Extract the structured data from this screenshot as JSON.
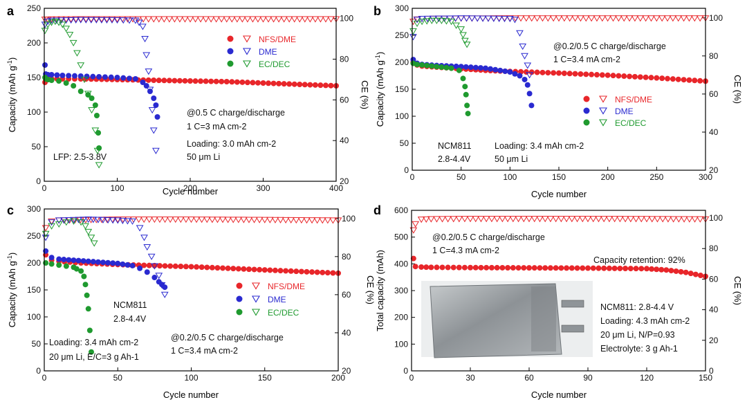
{
  "colors": {
    "nfs": "#e8262a",
    "dme": "#2a2ad0",
    "ec": "#1f9a2f",
    "axis": "#000000",
    "text": "#111111",
    "pouch": "#9ea3a6"
  },
  "chart_data": [
    {
      "panel": "a",
      "type": "scatter",
      "xlabel": "Cycle number",
      "ylabel": "Capacity (mAh g-1)",
      "ylabel_base": "Capacity (mAh g",
      "ylabel_sup": "-1",
      "ylabel_end": ")",
      "y2label": "CE (%)",
      "xlim": [
        0,
        400
      ],
      "ylim": [
        0,
        250
      ],
      "y2lim": [
        20,
        105
      ],
      "xticks": [
        0,
        100,
        200,
        300,
        400
      ],
      "yticks": [
        0,
        50,
        100,
        150,
        200,
        250
      ],
      "y2ticks": [
        20,
        40,
        60,
        80,
        100
      ],
      "legend": [
        {
          "label": "NFS/DME",
          "series": "nfs"
        },
        {
          "label": "DME",
          "series": "dme"
        },
        {
          "label": "EC/DEC",
          "series": "ec"
        }
      ],
      "annotations": [
        {
          "lines": [
            "@0.5 C charge/discharge",
            "1 C=3 mA cm-2"
          ]
        },
        {
          "lines": [
            "Loading: 3.0 mAh cm-2",
            "50 μm Li"
          ]
        },
        {
          "lines": [
            "LFP: 2.5-3.8V"
          ]
        }
      ],
      "series": [
        {
          "name": "NFS/DME",
          "key": "nfs",
          "axis": "capacity",
          "x": [
            1,
            2,
            5,
            10,
            25,
            50,
            100,
            150,
            200,
            250,
            300,
            350,
            400
          ],
          "y": [
            143,
            146,
            147,
            148,
            148,
            148,
            147,
            146,
            145,
            144,
            142,
            140,
            138
          ]
        },
        {
          "name": "NFS/DME",
          "key": "nfs",
          "axis": "ce",
          "x": [
            1,
            5,
            10,
            50,
            100,
            150,
            200,
            250,
            300,
            350,
            400
          ],
          "y": [
            99.5,
            99.5,
            99.6,
            99.7,
            99.7,
            99.7,
            99.7,
            99.7,
            99.7,
            99.7,
            99.7
          ]
        },
        {
          "name": "DME",
          "key": "dme",
          "axis": "capacity",
          "x": [
            1,
            2,
            5,
            10,
            25,
            50,
            75,
            100,
            125,
            135,
            140,
            145,
            150,
            153,
            155
          ],
          "y": [
            168,
            155,
            154,
            154,
            153,
            152,
            151,
            150,
            148,
            143,
            138,
            130,
            120,
            110,
            93
          ]
        },
        {
          "name": "DME",
          "key": "dme",
          "axis": "ce",
          "x": [
            1,
            5,
            10,
            50,
            100,
            125,
            130,
            135,
            138,
            140,
            143,
            145,
            148,
            150,
            153
          ],
          "y": [
            97,
            98.5,
            99,
            99.3,
            99.2,
            99,
            98,
            96,
            90,
            82,
            74,
            65,
            55,
            45,
            35
          ]
        },
        {
          "name": "EC/DEC",
          "key": "ec",
          "axis": "capacity",
          "x": [
            1,
            2,
            5,
            10,
            20,
            30,
            40,
            50,
            60,
            65,
            70,
            72,
            74,
            75
          ],
          "y": [
            150,
            148,
            147,
            146,
            145,
            142,
            138,
            130,
            125,
            120,
            110,
            95,
            70,
            48
          ]
        },
        {
          "name": "EC/DEC",
          "key": "ec",
          "axis": "ce",
          "x": [
            1,
            5,
            10,
            15,
            20,
            25,
            30,
            35,
            40,
            45,
            50,
            55,
            60,
            65,
            70,
            73,
            75
          ],
          "y": [
            94,
            97,
            98,
            98.5,
            98,
            97,
            95,
            92,
            88,
            83,
            77,
            70,
            63,
            55,
            45,
            35,
            28
          ]
        }
      ]
    },
    {
      "panel": "b",
      "type": "scatter",
      "xlabel": "Cycle number",
      "ylabel": "Capacity (mAh g-1)",
      "ylabel_base": "Capacity (mAh g",
      "ylabel_sup": "-1",
      "ylabel_end": ")",
      "y2label": "CE (%)",
      "xlim": [
        0,
        300
      ],
      "ylim": [
        0,
        300
      ],
      "y2lim": [
        20,
        105
      ],
      "xticks": [
        0,
        50,
        100,
        150,
        200,
        250,
        300
      ],
      "yticks": [
        0,
        50,
        100,
        150,
        200,
        250,
        300
      ],
      "y2ticks": [
        20,
        40,
        60,
        80,
        100
      ],
      "legend": [
        {
          "label": "NFS/DME",
          "series": "nfs"
        },
        {
          "label": "DME",
          "series": "dme"
        },
        {
          "label": "EC/DEC",
          "series": "ec"
        }
      ],
      "annotations": [
        {
          "lines": [
            "@0.2/0.5 C charge/discharge",
            "1 C=3.4 mA cm-2"
          ]
        },
        {
          "lines": [
            "NCM811",
            "2.8-4.4V"
          ]
        },
        {
          "lines": [
            "Loading: 3.4 mAh cm-2",
            "50 μm Li"
          ]
        }
      ],
      "series": [
        {
          "name": "NFS/DME",
          "key": "nfs",
          "axis": "capacity",
          "x": [
            1,
            5,
            10,
            25,
            50,
            75,
            100,
            150,
            200,
            250,
            300
          ],
          "y": [
            200,
            195,
            193,
            191,
            188,
            185,
            183,
            180,
            176,
            171,
            165
          ]
        },
        {
          "name": "NFS/DME",
          "key": "nfs",
          "axis": "ce",
          "x": [
            1,
            5,
            10,
            50,
            100,
            150,
            200,
            250,
            300
          ],
          "y": [
            98,
            99.2,
            99.5,
            99.7,
            99.8,
            99.8,
            99.8,
            99.8,
            99.8
          ]
        },
        {
          "name": "DME",
          "key": "dme",
          "axis": "capacity",
          "x": [
            1,
            5,
            10,
            25,
            50,
            75,
            100,
            110,
            115,
            118,
            120,
            122
          ],
          "y": [
            205,
            198,
            196,
            194,
            192,
            189,
            182,
            175,
            168,
            158,
            142,
            120
          ]
        },
        {
          "name": "DME",
          "key": "dme",
          "axis": "ce",
          "x": [
            1,
            5,
            10,
            50,
            100,
            105,
            110,
            113,
            115,
            118,
            120
          ],
          "y": [
            90,
            99,
            99.5,
            99.8,
            99.5,
            99,
            92,
            85,
            80,
            75,
            70
          ]
        },
        {
          "name": "EC/DEC",
          "key": "ec",
          "axis": "capacity",
          "x": [
            1,
            5,
            10,
            20,
            30,
            40,
            48,
            52,
            54,
            55,
            56,
            57
          ],
          "y": [
            198,
            196,
            195,
            193,
            191,
            189,
            185,
            170,
            155,
            140,
            120,
            105
          ]
        },
        {
          "name": "EC/DEC",
          "key": "ec",
          "axis": "ce",
          "x": [
            1,
            5,
            10,
            20,
            30,
            40,
            45,
            50,
            52,
            54,
            56
          ],
          "y": [
            93,
            97,
            98,
            98.5,
            98.5,
            98,
            96,
            94,
            91,
            88,
            86
          ]
        }
      ]
    },
    {
      "panel": "c",
      "type": "scatter",
      "xlabel": "Cycle number",
      "ylabel": "Capacity (mAh g-1)",
      "ylabel_base": "Capacity (mAh g",
      "ylabel_sup": "-1",
      "ylabel_end": ")",
      "y2label": "CE (%)",
      "xlim": [
        0,
        200
      ],
      "ylim": [
        0,
        300
      ],
      "y2lim": [
        20,
        105
      ],
      "xticks": [
        0,
        50,
        100,
        150,
        200
      ],
      "yticks": [
        0,
        50,
        100,
        150,
        200,
        250,
        300
      ],
      "y2ticks": [
        20,
        40,
        60,
        80,
        100
      ],
      "legend": [
        {
          "label": "NFS/DME",
          "series": "nfs"
        },
        {
          "label": "DME",
          "series": "dme"
        },
        {
          "label": "EC/DEC",
          "series": "ec"
        }
      ],
      "annotations": [
        {
          "lines": [
            "NCM811",
            "2.8-4.4V"
          ]
        },
        {
          "lines": [
            "@0.2/0.5 C charge/discharge",
            "1 C=3.4 mA cm-2"
          ]
        },
        {
          "lines": [
            "Loading: 3.4 mAh cm-2",
            "20 μm Li, E/C=3 g Ah-1"
          ]
        }
      ],
      "series": [
        {
          "name": "NFS/DME",
          "key": "nfs",
          "axis": "capacity",
          "x": [
            1,
            5,
            10,
            25,
            50,
            75,
            100,
            125,
            150,
            175,
            200
          ],
          "y": [
            215,
            205,
            203,
            200,
            197,
            195,
            193,
            190,
            187,
            184,
            181
          ]
        },
        {
          "name": "NFS/DME",
          "key": "nfs",
          "axis": "ce",
          "x": [
            1,
            5,
            10,
            50,
            100,
            150,
            200
          ],
          "y": [
            95,
            98.5,
            99,
            99.5,
            99.5,
            99.3,
            99
          ]
        },
        {
          "name": "DME",
          "key": "dme",
          "axis": "capacity",
          "x": [
            1,
            5,
            10,
            20,
            30,
            40,
            50,
            60,
            65,
            70,
            75,
            78,
            80,
            82
          ],
          "y": [
            222,
            210,
            207,
            205,
            203,
            201,
            199,
            195,
            190,
            183,
            173,
            165,
            160,
            155
          ]
        },
        {
          "name": "DME",
          "key": "dme",
          "axis": "ce",
          "x": [
            1,
            5,
            10,
            30,
            50,
            60,
            65,
            68,
            70,
            73,
            75,
            78,
            80,
            82
          ],
          "y": [
            90,
            98,
            99,
            99.5,
            99,
            98.5,
            95,
            90,
            85,
            80,
            75,
            70,
            65,
            60
          ]
        },
        {
          "name": "EC/DEC",
          "key": "ec",
          "axis": "capacity",
          "x": [
            1,
            5,
            10,
            15,
            20,
            22,
            25,
            27,
            28,
            29,
            30,
            31,
            32
          ],
          "y": [
            200,
            198,
            196,
            194,
            192,
            189,
            185,
            175,
            160,
            140,
            115,
            75,
            35
          ]
        },
        {
          "name": "EC/DEC",
          "key": "ec",
          "axis": "ce",
          "x": [
            1,
            5,
            10,
            15,
            20,
            25,
            28,
            30,
            32,
            34
          ],
          "y": [
            92,
            96,
            97,
            98,
            98.5,
            98,
            96,
            93,
            90,
            87
          ]
        }
      ]
    },
    {
      "panel": "d",
      "type": "scatter",
      "xlabel": "Cycle number",
      "ylabel": "Total capacity (mAh)",
      "y2label": "CE (%)",
      "xlim": [
        0,
        150
      ],
      "ylim": [
        0,
        600
      ],
      "y2lim": [
        0,
        105
      ],
      "xticks": [
        0,
        30,
        60,
        90,
        120,
        150
      ],
      "yticks": [
        0,
        100,
        200,
        300,
        400,
        500,
        600
      ],
      "y2ticks": [
        0,
        20,
        40,
        60,
        80,
        100
      ],
      "annotations": [
        {
          "lines": [
            "@0.2/0.5 C charge/discharge",
            "1 C=4.3 mA cm-2"
          ]
        },
        {
          "lines": [
            "Capacity retention: 92%"
          ]
        },
        {
          "lines": [
            "NCM811: 2.8-4.4 V",
            "Loading: 4.3 mAh cm-2",
            "20 μm Li, N/P=0.93",
            "Electrolyte: 3 g Ah-1"
          ]
        }
      ],
      "series": [
        {
          "name": "NFS/DME",
          "key": "nfs",
          "axis": "capacity",
          "x": [
            1,
            2,
            5,
            10,
            30,
            60,
            90,
            120,
            130,
            140,
            150
          ],
          "y": [
            420,
            390,
            388,
            387,
            386,
            385,
            384,
            382,
            377,
            368,
            353
          ]
        },
        {
          "name": "NFS/DME",
          "key": "nfs",
          "axis": "ce",
          "x": [
            1,
            2,
            5,
            10,
            30,
            60,
            90,
            120,
            150
          ],
          "y": [
            92,
            96,
            99,
            99.3,
            99.5,
            99.5,
            99.5,
            99.4,
            99.2
          ]
        }
      ]
    }
  ]
}
